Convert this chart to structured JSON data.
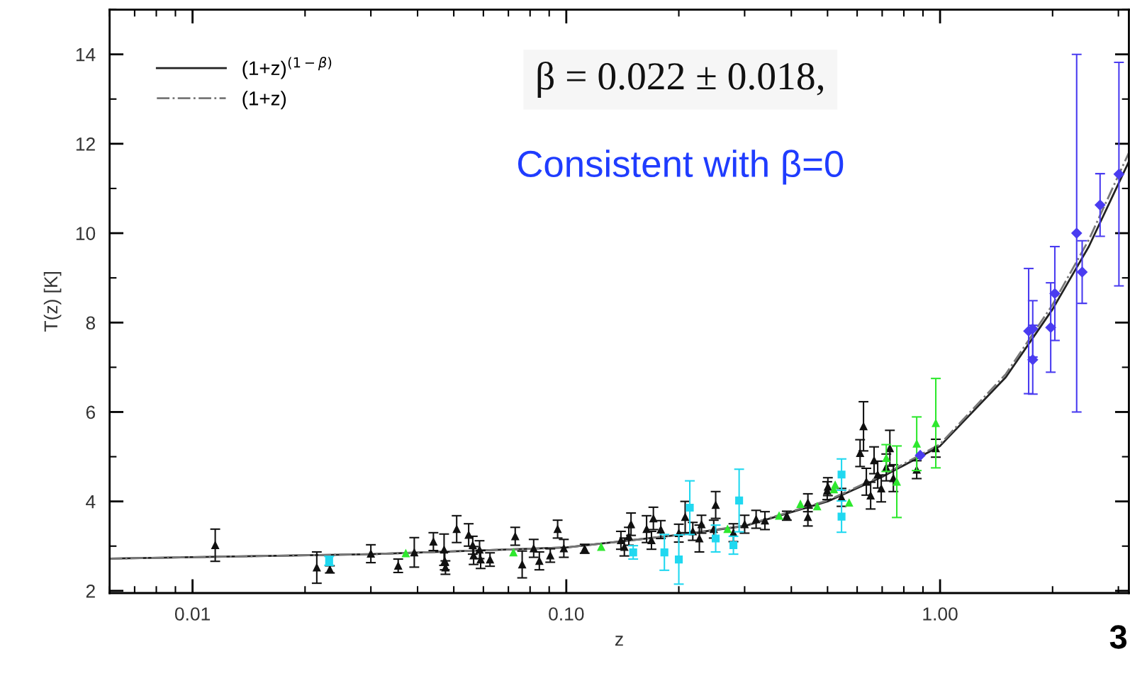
{
  "chart_data": {
    "type": "scatter",
    "xlabel": "z",
    "ylabel": "T(z) [K]",
    "log": "x",
    "xlim": [
      0.006,
      3.2
    ],
    "ylim": [
      1.95,
      15.0
    ],
    "xticks": [
      {
        "value": 0.01,
        "label": "0.01"
      },
      {
        "value": 0.1,
        "label": "0.10"
      },
      {
        "value": 1.0,
        "label": "1.00"
      }
    ],
    "yticks": [
      2,
      4,
      6,
      8,
      10,
      12,
      14
    ],
    "grid": false,
    "legend": "top left",
    "annotations": [
      "β = 0.022 ± 0.018,",
      "Consistent with β=0",
      "3"
    ],
    "series": [
      {
        "marker": "triangle",
        "color": "#111111",
        "x": [
          0.0115,
          0.0215,
          0.0233,
          0.03,
          0.0355,
          0.0392,
          0.0441,
          0.0471,
          0.0473,
          0.0475,
          0.0509,
          0.0548,
          0.0562,
          0.0565,
          0.0586,
          0.059,
          0.0625,
          0.073,
          0.0762,
          0.0818,
          0.0847,
          0.0906,
          0.0948,
          0.0985,
          0.112,
          0.14,
          0.143,
          0.147,
          0.149,
          0.164,
          0.169,
          0.171,
          0.179,
          0.2,
          0.208,
          0.218,
          0.227,
          0.23,
          0.248,
          0.251,
          0.28,
          0.3,
          0.322,
          0.34,
          0.389,
          0.443,
          0.443,
          0.501,
          0.499,
          0.545,
          0.624,
          0.611,
          0.635,
          0.652,
          0.666,
          0.681,
          0.696,
          0.718,
          0.734,
          0.75,
          0.866,
          0.974
        ],
        "values": [
          3.02,
          2.52,
          2.48,
          2.83,
          2.56,
          2.86,
          3.1,
          2.92,
          2.67,
          2.52,
          3.38,
          3.25,
          3.02,
          2.79,
          2.92,
          2.7,
          2.7,
          3.22,
          2.59,
          2.95,
          2.67,
          2.79,
          3.38,
          2.95,
          2.94,
          3.13,
          2.98,
          3.22,
          3.49,
          3.38,
          3.13,
          3.62,
          3.37,
          3.29,
          3.65,
          3.33,
          3.17,
          3.49,
          3.38,
          3.92,
          3.3,
          3.49,
          3.6,
          3.57,
          3.68,
          3.97,
          3.65,
          4.33,
          4.24,
          4.09,
          5.68,
          5.08,
          4.44,
          4.13,
          4.92,
          4.6,
          4.29,
          4.76,
          5.19,
          4.52,
          4.71,
          5.19
        ],
        "errors": [
          0.36,
          0.35,
          0.08,
          0.2,
          0.15,
          0.33,
          0.2,
          0.35,
          0.2,
          0.15,
          0.3,
          0.25,
          0.2,
          0.2,
          0.2,
          0.2,
          0.15,
          0.2,
          0.3,
          0.2,
          0.2,
          0.15,
          0.2,
          0.2,
          0.1,
          0.2,
          0.2,
          0.2,
          0.25,
          0.3,
          0.2,
          0.25,
          0.2,
          0.2,
          0.35,
          0.2,
          0.3,
          0.2,
          0.2,
          0.3,
          0.2,
          0.2,
          0.2,
          0.2,
          0.1,
          0.2,
          0.2,
          0.2,
          0.2,
          0.2,
          0.55,
          0.3,
          0.3,
          0.3,
          0.3,
          0.3,
          0.3,
          0.3,
          0.4,
          0.3,
          0.2,
          0.2
        ]
      },
      {
        "marker": "square",
        "color": "#20d8f0",
        "x": [
          0.0232,
          0.151,
          0.183,
          0.2,
          0.214,
          0.251,
          0.28,
          0.29,
          0.545,
          0.545
        ],
        "values": [
          2.67,
          2.86,
          2.86,
          2.7,
          3.86,
          3.17,
          3.02,
          4.02,
          4.6,
          3.66
        ],
        "errors": [
          0.1,
          0.15,
          0.4,
          0.55,
          0.6,
          0.3,
          0.2,
          0.7,
          0.35,
          0.35
        ]
      },
      {
        "marker": "triangle",
        "color": "#2ee82e",
        "x": [
          0.0372,
          0.0722,
          0.124,
          0.27,
          0.371,
          0.423,
          0.469,
          0.524,
          0.52,
          0.571,
          0.718,
          0.766,
          0.866,
          0.974
        ],
        "values": [
          2.84,
          2.86,
          2.98,
          3.38,
          3.68,
          3.94,
          3.89,
          4.37,
          4.27,
          3.97,
          4.97,
          4.44,
          5.29,
          5.75
        ],
        "errors": [
          null,
          null,
          null,
          null,
          null,
          null,
          null,
          null,
          null,
          null,
          0.3,
          0.8,
          0.6,
          1.0
        ]
      },
      {
        "marker": "diamond",
        "color": "#4a3cf0",
        "x": [
          0.885,
          1.726,
          1.77,
          1.77,
          1.977,
          2.028,
          2.32,
          2.4,
          2.68,
          3.01
        ],
        "values": [
          5.03,
          7.81,
          7.86,
          7.17,
          7.89,
          8.65,
          10.0,
          9.13,
          10.63,
          11.32
        ],
        "errors": [
          null,
          1.4,
          0.63,
          0.77,
          1.0,
          1.05,
          4.0,
          0.7,
          0.7,
          2.5
        ]
      },
      {
        "type": "line",
        "name": "(1+z)$^{(1−β)}$",
        "line_style": "solid",
        "color": "#222222",
        "x": [
          0.006,
          0.03,
          0.1,
          0.2,
          0.3,
          0.5,
          0.7,
          1.0,
          1.5,
          2.0,
          2.5,
          3.2
        ],
        "values": [
          2.72,
          2.82,
          2.97,
          3.25,
          3.45,
          4.0,
          4.55,
          5.24,
          6.78,
          8.3,
          9.7,
          11.6
        ]
      },
      {
        "type": "line",
        "name": "(1+z)",
        "line_style": "dashdot",
        "color": "#777777",
        "x": [
          0.006,
          0.03,
          0.1,
          0.2,
          0.3,
          0.5,
          0.7,
          1.0,
          1.5,
          2.0,
          2.5,
          3.2
        ],
        "values": [
          2.72,
          2.82,
          2.97,
          3.25,
          3.46,
          4.02,
          4.58,
          5.28,
          6.85,
          8.4,
          9.85,
          11.8
        ]
      }
    ]
  }
}
